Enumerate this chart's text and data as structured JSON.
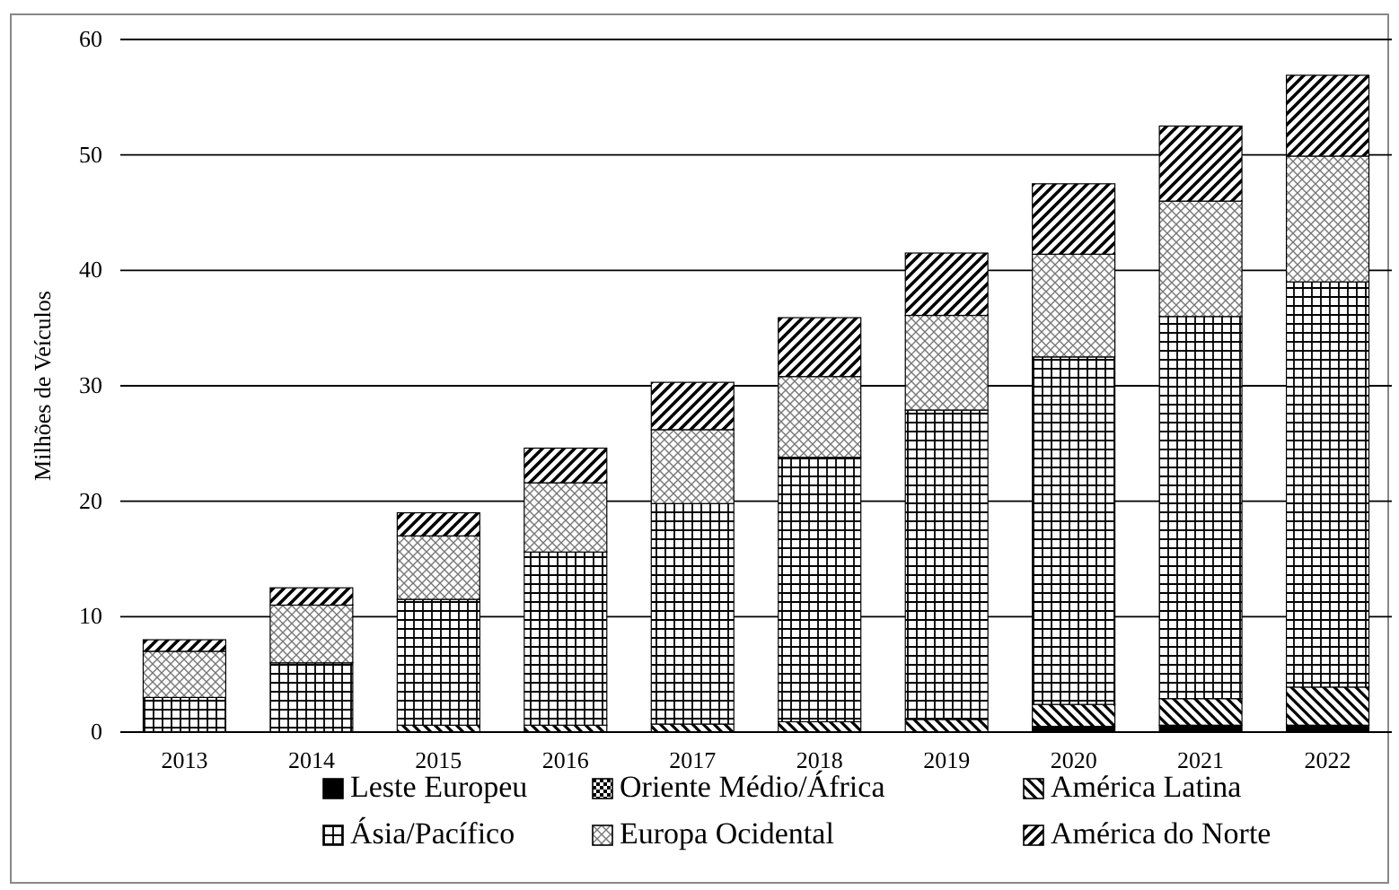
{
  "chart_data": {
    "type": "bar",
    "stacked": true,
    "ylabel": "Milhões de Veículos",
    "categories": [
      "2013",
      "2014",
      "2015",
      "2016",
      "2017",
      "2018",
      "2019",
      "2020",
      "2021",
      "2022"
    ],
    "series": [
      {
        "name": "Leste Europeu",
        "color": "#000000",
        "values": [
          0,
          0,
          0,
          0,
          0,
          0,
          0,
          0.5,
          0.6,
          0.6
        ]
      },
      {
        "name": "Oriente Médio/África",
        "color": "#000000",
        "values": [
          0,
          0,
          0,
          0,
          0,
          0,
          0,
          null,
          null,
          null
        ]
      },
      {
        "name": "América Latina",
        "color": "#000000",
        "values": [
          0,
          0,
          0.6,
          0.6,
          0.7,
          0.9,
          1.1,
          1.9,
          2.3,
          3.3
        ]
      },
      {
        "name": "Ásia/Pacífico",
        "color": "#000000",
        "values": [
          3,
          6,
          10.9,
          15,
          19.1,
          22.9,
          26.8,
          30.1,
          33.1,
          35.1
        ]
      },
      {
        "name": "Europa Ocidental",
        "color": "#000000",
        "values": [
          4,
          5,
          5.5,
          6,
          6.4,
          7,
          8.2,
          8.9,
          10,
          10.9
        ]
      },
      {
        "name": "América do Norte",
        "color": "#000000",
        "values": [
          1,
          1.5,
          2,
          3,
          4.1,
          5.1,
          5.4,
          6.1,
          6.5,
          7
        ]
      }
    ],
    "ylim": [
      0,
      60
    ],
    "yticks": [
      0,
      10,
      20,
      30,
      40,
      50,
      60
    ],
    "grid": "y",
    "legend": "bottom"
  }
}
